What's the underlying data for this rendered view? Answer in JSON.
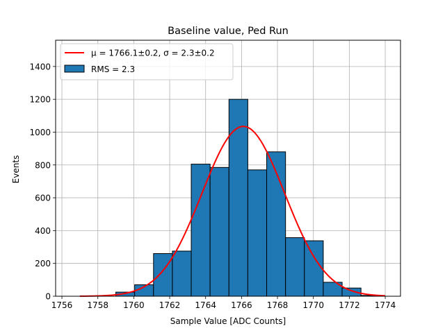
{
  "chart_data": {
    "type": "bar",
    "title": "Baseline value, Ped Run",
    "xlabel": "Sample Value [ADC Counts]",
    "ylabel": "Events",
    "xlim": [
      1755.65,
      1774.85
    ],
    "ylim": [
      0,
      1560
    ],
    "grid": true,
    "legend_position": "top-left",
    "x_ticks": [
      1756,
      1758,
      1760,
      1762,
      1764,
      1766,
      1768,
      1770,
      1772,
      1774
    ],
    "y_ticks": [
      0,
      200,
      400,
      600,
      800,
      1000,
      1200,
      1400
    ],
    "bin_width": 1.05,
    "bins": [
      {
        "left": 1756.9,
        "value": 0
      },
      {
        "left": 1757.95,
        "value": 0
      },
      {
        "left": 1759.0,
        "value": 25
      },
      {
        "left": 1760.05,
        "value": 70
      },
      {
        "left": 1761.1,
        "value": 260
      },
      {
        "left": 1762.15,
        "value": 275
      },
      {
        "left": 1763.2,
        "value": 805
      },
      {
        "left": 1764.25,
        "value": 785
      },
      {
        "left": 1765.3,
        "value": 1200
      },
      {
        "left": 1766.35,
        "value": 770
      },
      {
        "left": 1767.4,
        "value": 880
      },
      {
        "left": 1768.45,
        "value": 357
      },
      {
        "left": 1769.5,
        "value": 338
      },
      {
        "left": 1770.55,
        "value": 85
      },
      {
        "left": 1771.6,
        "value": 50
      },
      {
        "left": 1772.65,
        "value": 5
      }
    ],
    "fit": {
      "mu": 1766.1,
      "sigma": 2.3,
      "amplitude": 1035,
      "x_range": [
        1757,
        1774
      ],
      "color": "#ff0000"
    },
    "bar_color": "#1f77b4",
    "legend": [
      {
        "label": "μ = 1766.1±0.2, σ = 2.3±0.2",
        "kind": "line",
        "color": "#ff0000"
      },
      {
        "label": "RMS = 2.3",
        "kind": "patch",
        "color": "#1f77b4"
      }
    ]
  }
}
